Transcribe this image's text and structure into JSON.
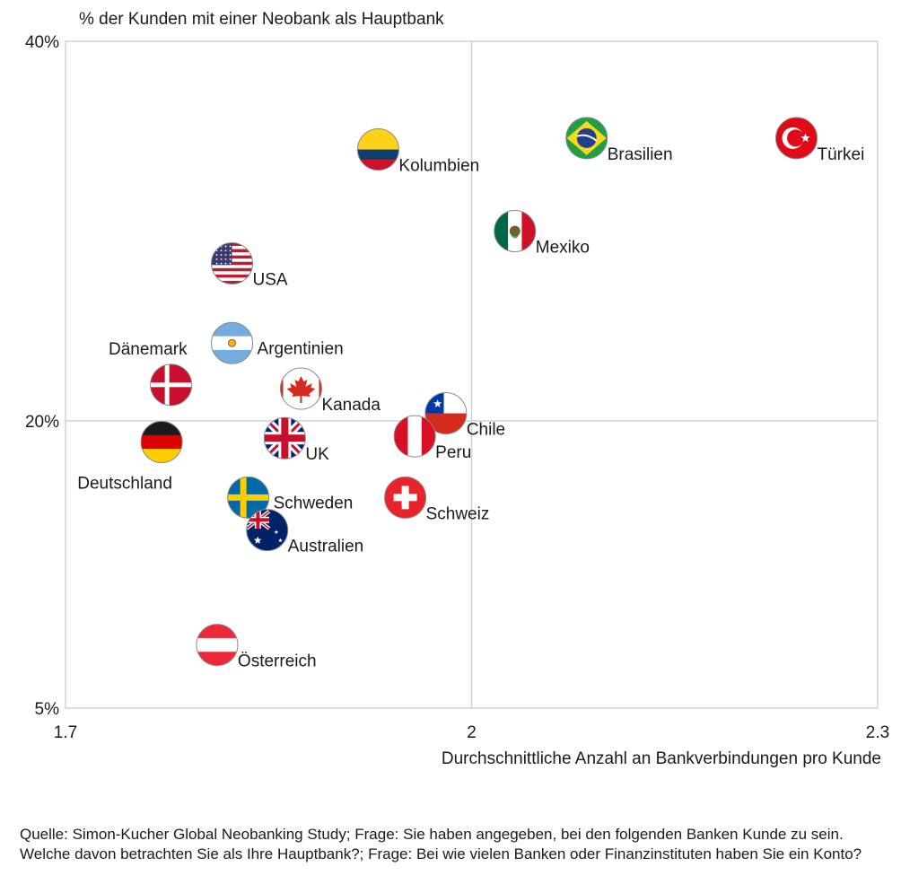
{
  "chart_data": {
    "type": "scatter",
    "title": "",
    "ylabel": "% der Kunden mit einer Neobank als Hauptbank",
    "xlabel": "Durchschnittliche Anzahl an Bankverbindungen pro Kunde",
    "xlim": [
      1.7,
      2.3
    ],
    "ylim": [
      5,
      40
    ],
    "y_scale": "piecewise (5%–20% lower half, 20%–40% upper half)",
    "x_ticks": [
      {
        "value": 1.7,
        "label": "1.7"
      },
      {
        "value": 2.0,
        "label": "2"
      },
      {
        "value": 2.3,
        "label": "2.3"
      }
    ],
    "y_ticks": [
      {
        "value": 40,
        "label": "40%"
      },
      {
        "value": 20,
        "label": "20%"
      },
      {
        "value": 5,
        "label": "5%"
      }
    ],
    "reference_lines": {
      "x": 2.0,
      "y": 20
    },
    "grid": false,
    "legend": "none",
    "points": [
      {
        "country": "Kolumbien",
        "flag": "colombia-flag",
        "x": 1.931,
        "y": 34.3,
        "label_pos": "bottom-right"
      },
      {
        "country": "Brasilien",
        "flag": "brazil-flag",
        "x": 2.085,
        "y": 34.9,
        "label_pos": "bottom-right"
      },
      {
        "country": "Türkei",
        "flag": "turkey-flag",
        "x": 2.24,
        "y": 34.9,
        "label_pos": "bottom-right"
      },
      {
        "country": "Mexiko",
        "flag": "mexico-flag",
        "x": 2.032,
        "y": 30.0,
        "label_pos": "bottom-right"
      },
      {
        "country": "USA",
        "flag": "usa-flag",
        "x": 1.823,
        "y": 28.3,
        "label_pos": "bottom-right"
      },
      {
        "country": "Argentinien",
        "flag": "argentina-flag",
        "x": 1.823,
        "y": 24.1,
        "label_pos": "right"
      },
      {
        "country": "Dänemark",
        "flag": "denmark-flag",
        "x": 1.778,
        "y": 21.9,
        "label_pos": "top-left"
      },
      {
        "country": "Kanada",
        "flag": "canada-flag",
        "x": 1.874,
        "y": 21.7,
        "label_pos": "bottom-right"
      },
      {
        "country": "Chile",
        "flag": "chile-flag",
        "x": 1.981,
        "y": 20.4,
        "label_pos": "bottom-right"
      },
      {
        "country": "Deutschland",
        "flag": "germany-flag",
        "x": 1.771,
        "y": 18.9,
        "label_pos": "bottom-left"
      },
      {
        "country": "UK",
        "flag": "uk-flag",
        "x": 1.862,
        "y": 19.1,
        "label_pos": "bottom-right"
      },
      {
        "country": "Peru",
        "flag": "peru-flag",
        "x": 1.958,
        "y": 19.2,
        "label_pos": "bottom-right"
      },
      {
        "country": "Schweiz",
        "flag": "switzerland-flag",
        "x": 1.951,
        "y": 16.0,
        "label_pos": "bottom-right"
      },
      {
        "country": "Schweden",
        "flag": "sweden-flag",
        "x": 1.835,
        "y": 16.0,
        "label_pos": "right"
      },
      {
        "country": "Australien",
        "flag": "australia-flag",
        "x": 1.849,
        "y": 14.3,
        "label_pos": "bottom-right"
      },
      {
        "country": "Österreich",
        "flag": "austria-flag",
        "x": 1.812,
        "y": 8.3,
        "label_pos": "bottom-right"
      }
    ]
  },
  "colors": {
    "axis": "#cfd3d6",
    "text": "#1a1a1a",
    "flag_border": "#8a8a8a"
  },
  "footer": {
    "source": "Quelle: Simon-Kucher Global Neobanking Study; Frage: Sie haben angegeben, bei den folgenden Banken Kunde zu sein. Welche davon betrachten Sie als Ihre Hauptbank?; Frage: Bei wie vielen Banken oder Finanzinstituten haben Sie ein Konto?"
  }
}
